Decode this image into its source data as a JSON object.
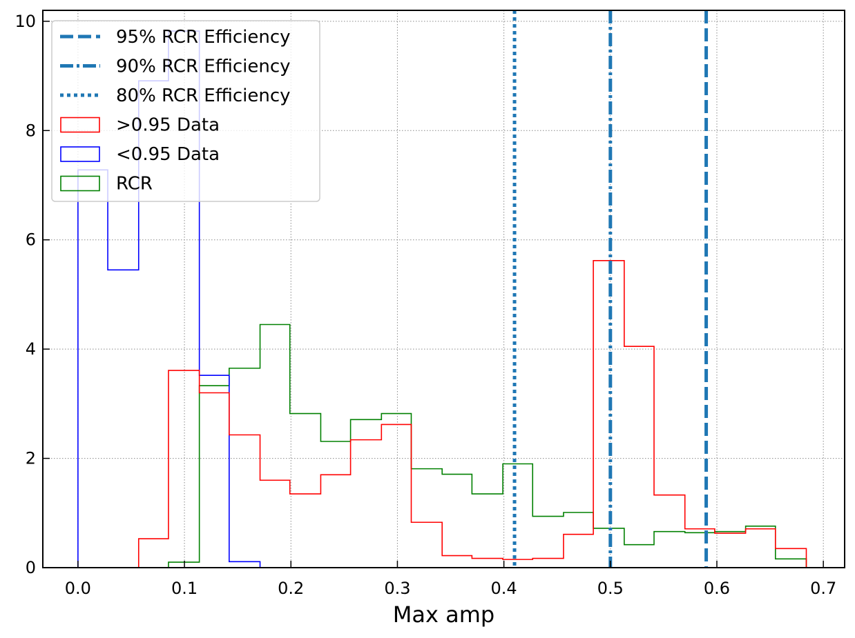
{
  "chart_data": {
    "type": "histogram-step",
    "title": "",
    "xlabel": "Max amp",
    "ylabel": "",
    "xlim": [
      -0.033,
      0.72
    ],
    "ylim": [
      0,
      10.2
    ],
    "xticks": [
      "0.0",
      "0.1",
      "0.2",
      "0.3",
      "0.4",
      "0.5",
      "0.6",
      "0.7"
    ],
    "yticks": [
      "0",
      "2",
      "4",
      "6",
      "8",
      "10"
    ],
    "grid": "dotted",
    "legend_position": "top-left",
    "vlines": [
      {
        "name": "95% RCR Efficiency",
        "x": 0.59,
        "style": "dashed",
        "color": "#1f77b4"
      },
      {
        "name": "90% RCR Efficiency",
        "x": 0.5,
        "style": "dashdot",
        "color": "#1f77b4"
      },
      {
        "name": "80% RCR Efficiency",
        "x": 0.41,
        "style": "dotted",
        "color": "#1f77b4"
      }
    ],
    "series": [
      {
        "name": ">0.95 Data",
        "color": "#ff0000",
        "edges": [
          0.057,
          0.085,
          0.114,
          0.142,
          0.171,
          0.199,
          0.228,
          0.256,
          0.285,
          0.313,
          0.342,
          0.37,
          0.399,
          0.427,
          0.456,
          0.484,
          0.513,
          0.541,
          0.57,
          0.598,
          0.627,
          0.655,
          0.684
        ],
        "values": [
          0.53,
          3.61,
          3.2,
          2.43,
          1.6,
          1.35,
          1.7,
          2.34,
          2.62,
          0.83,
          0.22,
          0.17,
          0.15,
          0.17,
          0.61,
          5.62,
          4.05,
          1.33,
          0.71,
          0.63,
          0.71,
          0.35
        ]
      },
      {
        "name": "<0.95 Data",
        "color": "#0000ff",
        "edges": [
          0.0,
          0.028,
          0.057,
          0.085,
          0.114,
          0.142,
          0.171
        ],
        "values": [
          7.28,
          5.45,
          8.91,
          9.82,
          3.52,
          0.11
        ]
      },
      {
        "name": "RCR",
        "color": "#008000",
        "edges": [
          0.085,
          0.114,
          0.142,
          0.171,
          0.199,
          0.228,
          0.256,
          0.285,
          0.313,
          0.342,
          0.37,
          0.399,
          0.427,
          0.456,
          0.484,
          0.513,
          0.541,
          0.57,
          0.598,
          0.627,
          0.655,
          0.684
        ],
        "values": [
          0.1,
          3.33,
          3.65,
          4.45,
          2.82,
          2.31,
          2.71,
          2.82,
          1.81,
          1.71,
          1.35,
          1.9,
          0.94,
          1.01,
          0.72,
          0.42,
          0.66,
          0.64,
          0.66,
          0.76,
          0.16
        ]
      }
    ]
  }
}
